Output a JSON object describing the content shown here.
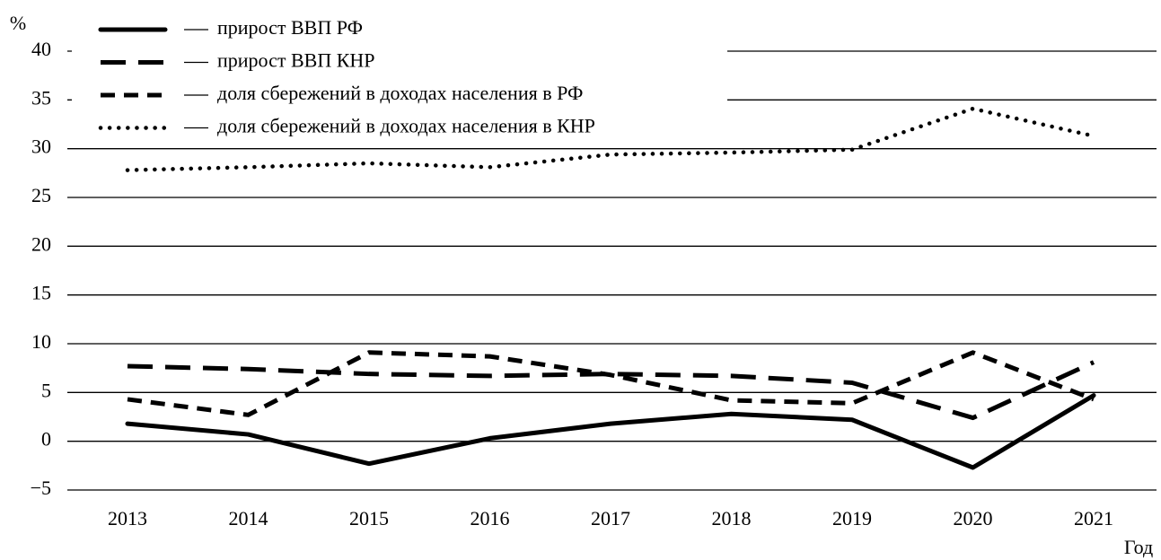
{
  "chart_data": {
    "type": "line",
    "y_label": "%",
    "x_label": "Год",
    "categories": [
      "2013",
      "2014",
      "2015",
      "2016",
      "2017",
      "2018",
      "2019",
      "2020",
      "2021"
    ],
    "series": [
      {
        "name": "прирост ВВП РФ",
        "color": "#000000",
        "style": "solid",
        "values": [
          1.8,
          0.7,
          -2.3,
          0.3,
          1.8,
          2.8,
          2.2,
          -2.7,
          4.7
        ]
      },
      {
        "name": "прирост ВВП КНР",
        "color": "#000000",
        "style": "long-dash",
        "values": [
          7.7,
          7.4,
          6.9,
          6.7,
          6.9,
          6.7,
          6.0,
          2.4,
          8.1
        ]
      },
      {
        "name": "доля сбережений в доходах населения в РФ",
        "color": "#000000",
        "style": "short-dash",
        "values": [
          4.3,
          2.7,
          9.1,
          8.7,
          6.8,
          4.2,
          3.9,
          9.1,
          4.3
        ]
      },
      {
        "name": "доля сбережений в доходах населения в КНР",
        "color": "#000000",
        "style": "dotted",
        "values": [
          27.8,
          28.1,
          28.5,
          28.1,
          29.4,
          29.6,
          29.9,
          34.1,
          31.3
        ]
      }
    ],
    "ylim": [
      -5,
      40
    ],
    "yticks": [
      {
        "value": -5,
        "label": "−5"
      },
      0,
      5,
      10,
      15,
      20,
      25,
      30,
      35,
      40
    ],
    "grid": true,
    "legend": "top-left"
  }
}
